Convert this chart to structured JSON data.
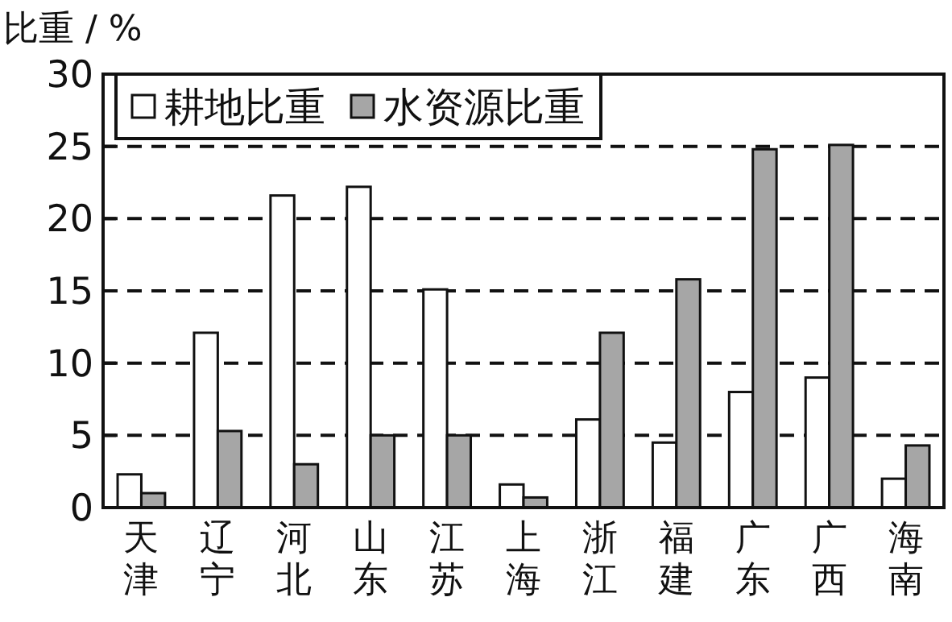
{
  "chart_data": {
    "type": "bar",
    "ylabel": "比重 / %",
    "categories": [
      "天津",
      "辽宁",
      "河北",
      "山东",
      "江苏",
      "上海",
      "浙江",
      "福建",
      "广东",
      "广西",
      "海南"
    ],
    "series": [
      {
        "name": "耕地比重",
        "color": "#ffffff",
        "values": [
          2.3,
          12.1,
          21.6,
          22.2,
          15.1,
          1.6,
          6.1,
          4.5,
          8.0,
          9.0,
          2.0
        ]
      },
      {
        "name": "水资源比重",
        "color": "#a6a6a6",
        "values": [
          1.0,
          5.3,
          3.0,
          5.0,
          5.0,
          0.7,
          12.1,
          15.8,
          24.8,
          25.1,
          4.3
        ]
      }
    ],
    "ylim": [
      0,
      30
    ],
    "yticks": [
      0,
      5,
      10,
      15,
      20,
      25,
      30
    ],
    "grid": "y",
    "legend": "top left"
  }
}
